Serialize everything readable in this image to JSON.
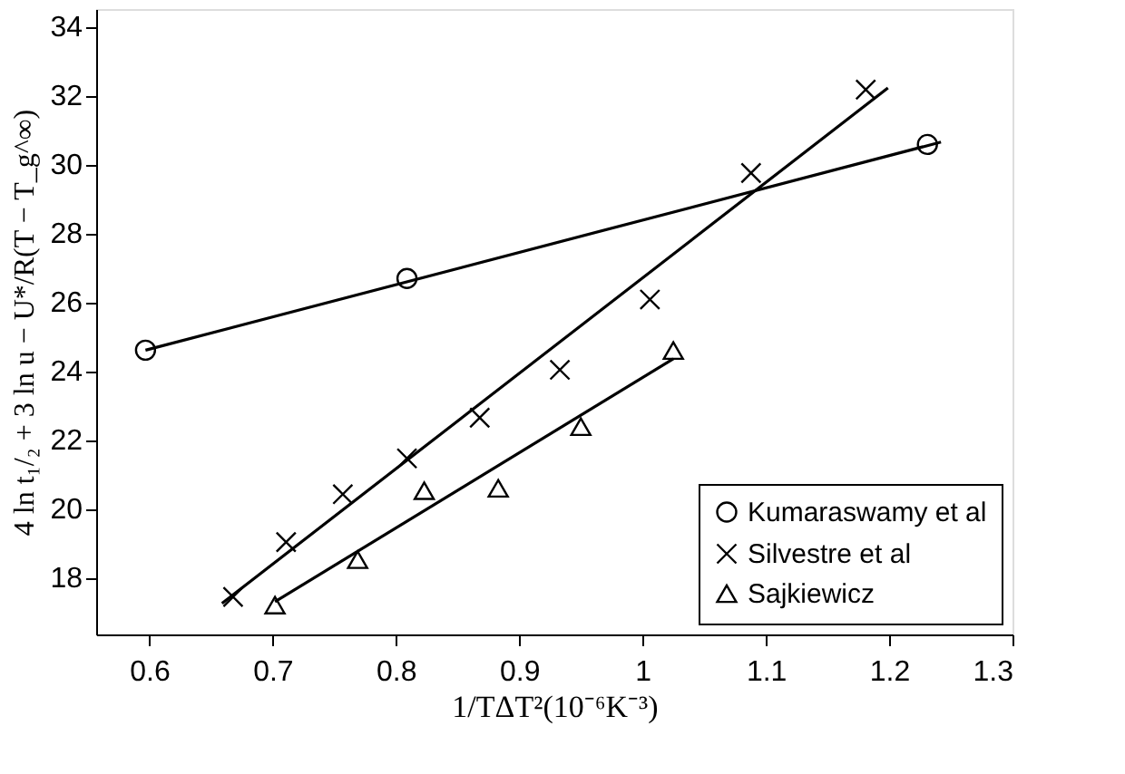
{
  "chart_data": {
    "type": "scatter",
    "xlabel": "1/TΔT²(10⁻⁶K⁻³)",
    "ylabel": "4 ln t₁/₂ + 3 ln u − U*/R(T − T_g^∞)",
    "xlim": [
      0.557,
      1.3
    ],
    "xticks": [
      0.6,
      0.7,
      0.8,
      0.9,
      1,
      1.1,
      1.2,
      1.3
    ],
    "ylim": [
      16.35,
      34.5
    ],
    "yticks": [
      18,
      20,
      22,
      24,
      26,
      28,
      30,
      32,
      34
    ],
    "grid": false,
    "legend": "bottom right",
    "series": [
      {
        "name": "Kumaraswamy et al",
        "color": "#000000",
        "marker": "circle",
        "x": [
          0.597,
          0.809,
          1.231
        ],
        "values": [
          24.6,
          26.68,
          30.57
        ]
      },
      {
        "name": "Silvestre et al",
        "color": "#000000",
        "marker": "cross",
        "x": [
          0.668,
          0.711,
          0.757,
          0.809,
          0.868,
          0.933,
          1.006,
          1.088,
          1.181
        ],
        "values": [
          17.44,
          19.03,
          20.42,
          21.46,
          22.64,
          24.03,
          26.07,
          29.74,
          32.16
        ]
      },
      {
        "name": "Sajkiewicz",
        "color": "#000000",
        "marker": "triangle",
        "x": [
          0.702,
          0.769,
          0.823,
          0.883,
          0.95,
          1.025
        ],
        "values": [
          17.2,
          18.52,
          20.52,
          20.59,
          22.38,
          24.59
        ]
      },
      {
        "type": "line",
        "color": "#000000",
        "line_style": "solid",
        "x": [
          0.597,
          1.242
        ],
        "values": [
          24.6,
          30.64
        ]
      },
      {
        "type": "line",
        "color": "#000000",
        "line_style": "solid",
        "x": [
          0.659,
          1.199
        ],
        "values": [
          17.25,
          32.21
        ]
      },
      {
        "type": "line",
        "color": "#000000",
        "line_style": "solid",
        "x": [
          0.702,
          1.025
        ],
        "values": [
          17.3,
          24.35
        ]
      }
    ]
  }
}
